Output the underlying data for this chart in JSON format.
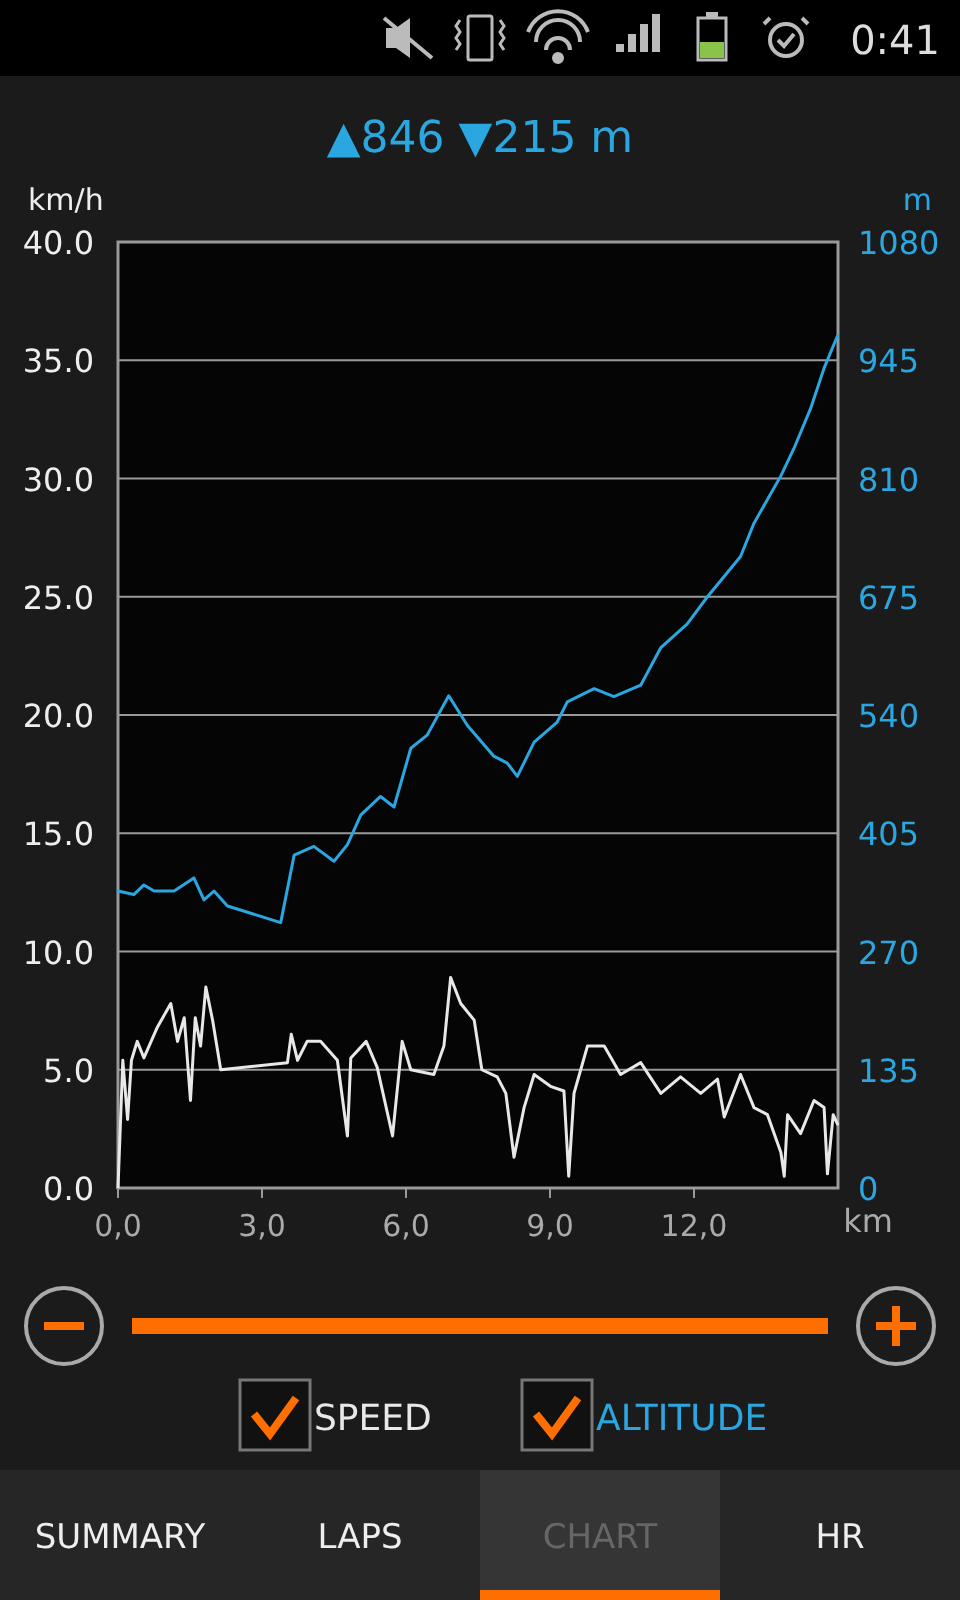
{
  "chart_data": {
    "type": "line",
    "title": "▲846 ▼215 m",
    "xlabel": "km",
    "ylabel": "km/h",
    "y2label": "m",
    "xlim": [
      0,
      15
    ],
    "xticks": [
      {
        "value": 0,
        "label": "0,0"
      },
      {
        "value": 3,
        "label": "3,0"
      },
      {
        "value": 6,
        "label": "6,0"
      },
      {
        "value": 9,
        "label": "9,0"
      },
      {
        "value": 12,
        "label": "12,0"
      }
    ],
    "ylim": [
      0,
      40
    ],
    "yticks": [
      {
        "value": 0,
        "label": "0.0"
      },
      {
        "value": 5,
        "label": "5.0"
      },
      {
        "value": 10,
        "label": "10.0"
      },
      {
        "value": 15,
        "label": "15.0"
      },
      {
        "value": 20,
        "label": "20.0"
      },
      {
        "value": 25,
        "label": "25.0"
      },
      {
        "value": 30,
        "label": "30.0"
      },
      {
        "value": 35,
        "label": "35.0"
      },
      {
        "value": 40,
        "label": "40.0"
      }
    ],
    "y2lim": [
      0,
      1080
    ],
    "y2ticks": [
      0,
      135,
      270,
      405,
      540,
      675,
      810,
      945,
      1080
    ],
    "grid": "y",
    "legend": "bottom",
    "line_style": "solid",
    "marker": "none",
    "series": [
      {
        "name": "SPEED",
        "color": "#e8e8e8",
        "x": [
          0,
          0.1,
          0.2,
          0.28,
          0.4,
          0.54,
          0.82,
          1.1,
          1.24,
          1.38,
          1.51,
          1.61,
          1.72,
          1.83,
          1.97,
          2.14,
          3.53,
          3.61,
          3.74,
          3.94,
          4.22,
          4.57,
          4.78,
          4.85,
          5.17,
          5.4,
          5.72,
          5.92,
          6.1,
          6.58,
          6.79,
          6.93,
          7.14,
          7.42,
          7.58,
          7.9,
          8.08,
          8.25,
          8.46,
          8.67,
          9.01,
          9.29,
          9.39,
          9.5,
          9.78,
          10.13,
          10.47,
          10.89,
          11.31,
          11.72,
          12.14,
          12.49,
          12.63,
          12.97,
          13.25,
          13.53,
          13.81,
          13.88,
          13.95,
          14.22,
          14.5,
          14.71,
          14.78,
          14.9,
          14.99
        ],
        "values": [
          0,
          5.4,
          2.9,
          5.4,
          6.2,
          5.5,
          6.8,
          7.8,
          6.2,
          7.2,
          3.7,
          7.2,
          6.0,
          8.5,
          7.1,
          5.0,
          5.3,
          6.5,
          5.4,
          6.2,
          6.2,
          5.4,
          2.2,
          5.5,
          6.2,
          5.1,
          2.2,
          6.2,
          5.0,
          4.8,
          6.0,
          8.9,
          7.8,
          7.1,
          5.0,
          4.7,
          4.0,
          1.3,
          3.4,
          4.8,
          4.3,
          4.1,
          0.5,
          4.0,
          6.0,
          6.0,
          4.8,
          5.3,
          4.0,
          4.7,
          4.0,
          4.6,
          3.0,
          4.8,
          3.4,
          3.1,
          1.5,
          0.5,
          3.1,
          2.3,
          3.7,
          3.4,
          0.6,
          3.1,
          2.7
        ]
      },
      {
        "name": "ALTITUDE",
        "color": "#2aa6e0",
        "axis": "y2",
        "x": [
          0,
          0.33,
          0.54,
          0.75,
          1.17,
          1.58,
          1.79,
          2.0,
          2.28,
          3.39,
          3.67,
          4.08,
          4.5,
          4.78,
          5.06,
          5.47,
          5.75,
          6.1,
          6.44,
          6.89,
          7.28,
          7.83,
          8.11,
          8.32,
          8.67,
          9.15,
          9.36,
          9.92,
          10.33,
          10.89,
          11.31,
          11.86,
          12.28,
          12.97,
          13.25,
          13.81,
          14.08,
          14.43,
          14.71,
          14.99
        ],
        "values": [
          339,
          335,
          346,
          339,
          339,
          354,
          329,
          339,
          322,
          303,
          380,
          390,
          373,
          392,
          426,
          447,
          435,
          502,
          517,
          562,
          528,
          493,
          485,
          470,
          509,
          532,
          555,
          570,
          561,
          574,
          617,
          644,
          675,
          721,
          759,
          813,
          844,
          890,
          936,
          973
        ]
      }
    ],
    "annotations": [
      "0:41",
      "SUMMARY",
      "LAPS",
      "CHART",
      "HR"
    ]
  }
}
